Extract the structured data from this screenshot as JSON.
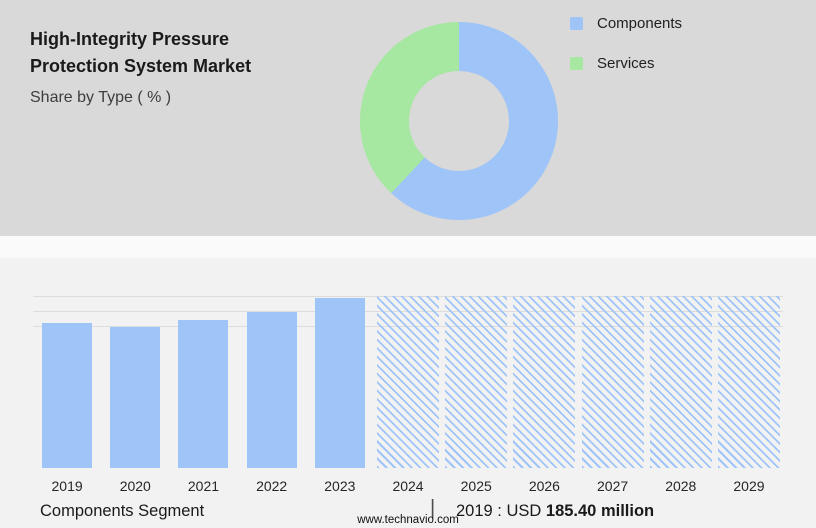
{
  "page": {
    "background_top": "#d9d9d9",
    "background_bottom": "#f2f2f2"
  },
  "header": {
    "title_line1": "High-Integrity Pressure",
    "title_line2": "Protection System Market",
    "subtitle": "Share by Type ( % )"
  },
  "legend": {
    "items": [
      {
        "label": "Components",
        "color": "#9EC4F8"
      },
      {
        "label": "Services",
        "color": "#A6E7A1"
      }
    ]
  },
  "chart_data": [
    {
      "type": "pie",
      "subtype": "donut",
      "title": "Share by Type ( % )",
      "labels": [
        "Components",
        "Services"
      ],
      "values": [
        62,
        38
      ],
      "colors": [
        "#9EC4F8",
        "#A6E7A1"
      ],
      "legend_position": "top-right",
      "start_angle_deg": 0,
      "direction": "clockwise"
    },
    {
      "type": "bar",
      "categories": [
        "2019",
        "2020",
        "2021",
        "2022",
        "2023",
        "2024",
        "2025",
        "2026",
        "2027",
        "2028",
        "2029"
      ],
      "values": [
        185.4,
        180,
        189,
        199,
        217,
        220,
        220,
        220,
        220,
        220,
        220
      ],
      "forecast_start_index": 5,
      "forecast_bar_style": "diagonal-hatch",
      "labeled_point": {
        "year": "2019",
        "value": "USD 185.40 million"
      },
      "ylim": [
        0,
        220
      ],
      "bar_color": "#9EC4F8",
      "grid": true,
      "xlabel": "",
      "ylabel": ""
    }
  ],
  "caption": {
    "segment": "Components Segment",
    "separator": "|",
    "stat_prefix": "2019 : USD ",
    "stat_value": "185.40 million"
  },
  "footer": {
    "website": "www.technavio.com"
  }
}
